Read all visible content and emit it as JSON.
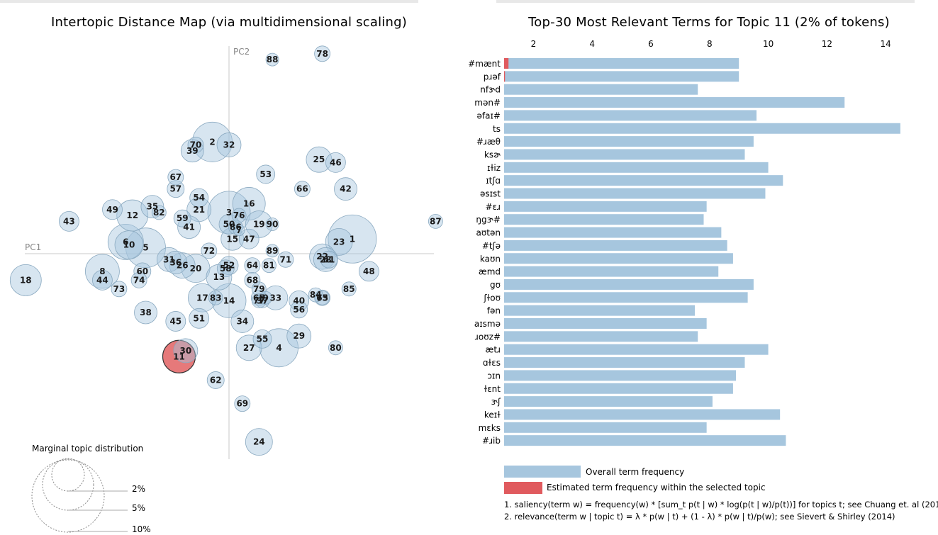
{
  "map": {
    "title": "Intertopic Distance Map (via multidimensional scaling)",
    "pc1_label": "PC1",
    "pc2_label": "PC2",
    "marginal_title": "Marginal topic distribution",
    "marginal_levels": [
      "2%",
      "5%",
      "10%"
    ],
    "selected_topic": "11",
    "colors": {
      "bubble": "#a6c6de",
      "bubble_stroke": "#8aa9c0",
      "selected": "#d62728",
      "axis": "#c8c8c8"
    }
  },
  "bars": {
    "title": "Top-30 Most Relevant Terms for Topic 11 (2% of tokens)",
    "legend_overall": "Overall term frequency",
    "legend_selected": "Estimated term frequency within the selected topic",
    "footnote1": "1. saliency(term w) = frequency(w) * [sum_t p(t | w) * log(p(t | w)/p(t))] for topics t; see Chuang et. al (2012)",
    "footnote2": "2. relevance(term w | topic t) = λ * p(w | t) + (1 - λ) * p(w | t)/p(w); see Sievert & Shirley (2014)",
    "colors": {
      "overall": "#a6c6de",
      "topic": "#e05a5e"
    }
  },
  "chart_data": [
    {
      "type": "scatter",
      "title": "Intertopic Distance Map (via multidimensional scaling)",
      "xlabel": "PC1",
      "ylabel": "PC2",
      "note": "bubble positions approximate PC1/PC2 coordinates; size = marginal topic distribution",
      "points": [
        {
          "topic": "1",
          "x": 0.37,
          "y": 0.05,
          "r": 34
        },
        {
          "topic": "2",
          "x": -0.05,
          "y": 0.38,
          "r": 28
        },
        {
          "topic": "3",
          "x": 0.0,
          "y": 0.14,
          "r": 30
        },
        {
          "topic": "4",
          "x": 0.15,
          "y": -0.32,
          "r": 27
        },
        {
          "topic": "5",
          "x": -0.25,
          "y": 0.02,
          "r": 28
        },
        {
          "topic": "6",
          "x": -0.31,
          "y": 0.04,
          "r": 25
        },
        {
          "topic": "7",
          "x": 0.03,
          "y": 0.08,
          "r": 8
        },
        {
          "topic": "8",
          "x": -0.38,
          "y": -0.06,
          "r": 24
        },
        {
          "topic": "9",
          "x": 0.11,
          "y": -0.15,
          "r": 9
        },
        {
          "topic": "10",
          "x": -0.3,
          "y": 0.03,
          "r": 20
        },
        {
          "topic": "11",
          "x": -0.15,
          "y": -0.35,
          "r": 23
        },
        {
          "topic": "12",
          "x": -0.29,
          "y": 0.13,
          "r": 22
        },
        {
          "topic": "13",
          "x": -0.03,
          "y": -0.08,
          "r": 18
        },
        {
          "topic": "14",
          "x": 0.0,
          "y": -0.16,
          "r": 24
        },
        {
          "topic": "15",
          "x": 0.01,
          "y": 0.05,
          "r": 16
        },
        {
          "topic": "16",
          "x": 0.06,
          "y": 0.17,
          "r": 23
        },
        {
          "topic": "17",
          "x": -0.08,
          "y": -0.15,
          "r": 20
        },
        {
          "topic": "18",
          "x": -0.61,
          "y": -0.09,
          "r": 22
        },
        {
          "topic": "19",
          "x": 0.09,
          "y": 0.1,
          "r": 19
        },
        {
          "topic": "20",
          "x": -0.1,
          "y": -0.05,
          "r": 20
        },
        {
          "topic": "21",
          "x": -0.09,
          "y": 0.15,
          "r": 17
        },
        {
          "topic": "22",
          "x": 0.28,
          "y": -0.01,
          "r": 18
        },
        {
          "topic": "23",
          "x": 0.33,
          "y": 0.04,
          "r": 19
        },
        {
          "topic": "24",
          "x": 0.09,
          "y": -0.64,
          "r": 19
        },
        {
          "topic": "25",
          "x": 0.27,
          "y": 0.32,
          "r": 18
        },
        {
          "topic": "26",
          "x": -0.14,
          "y": -0.04,
          "r": 18
        },
        {
          "topic": "27",
          "x": 0.06,
          "y": -0.32,
          "r": 18
        },
        {
          "topic": "28",
          "x": 0.29,
          "y": -0.02,
          "r": 17
        },
        {
          "topic": "29",
          "x": 0.21,
          "y": -0.28,
          "r": 17
        },
        {
          "topic": "30",
          "x": -0.13,
          "y": -0.33,
          "r": 17
        },
        {
          "topic": "31",
          "x": -0.18,
          "y": -0.02,
          "r": 17
        },
        {
          "topic": "32",
          "x": 0.0,
          "y": 0.37,
          "r": 17
        },
        {
          "topic": "33",
          "x": 0.14,
          "y": -0.15,
          "r": 17
        },
        {
          "topic": "34",
          "x": 0.04,
          "y": -0.23,
          "r": 16
        },
        {
          "topic": "35",
          "x": -0.23,
          "y": 0.16,
          "r": 16
        },
        {
          "topic": "36",
          "x": -0.16,
          "y": -0.03,
          "r": 16
        },
        {
          "topic": "37",
          "x": 0.1,
          "y": -0.16,
          "r": 10
        },
        {
          "topic": "38",
          "x": -0.25,
          "y": -0.2,
          "r": 16
        },
        {
          "topic": "39",
          "x": -0.11,
          "y": 0.35,
          "r": 16
        },
        {
          "topic": "40",
          "x": 0.21,
          "y": -0.16,
          "r": 14
        },
        {
          "topic": "41",
          "x": -0.12,
          "y": 0.09,
          "r": 16
        },
        {
          "topic": "42",
          "x": 0.35,
          "y": 0.22,
          "r": 16
        },
        {
          "topic": "43",
          "x": -0.48,
          "y": 0.11,
          "r": 14
        },
        {
          "topic": "44",
          "x": -0.38,
          "y": -0.09,
          "r": 14
        },
        {
          "topic": "45",
          "x": -0.16,
          "y": -0.23,
          "r": 14
        },
        {
          "topic": "46",
          "x": 0.32,
          "y": 0.31,
          "r": 14
        },
        {
          "topic": "47",
          "x": 0.06,
          "y": 0.05,
          "r": 14
        },
        {
          "topic": "48",
          "x": 0.42,
          "y": -0.06,
          "r": 14
        },
        {
          "topic": "49",
          "x": -0.35,
          "y": 0.15,
          "r": 14
        },
        {
          "topic": "50",
          "x": 0.0,
          "y": 0.1,
          "r": 14
        },
        {
          "topic": "51",
          "x": -0.09,
          "y": -0.22,
          "r": 14
        },
        {
          "topic": "52",
          "x": 0.0,
          "y": -0.04,
          "r": 13
        },
        {
          "topic": "53",
          "x": 0.11,
          "y": 0.27,
          "r": 13
        },
        {
          "topic": "54",
          "x": -0.09,
          "y": 0.19,
          "r": 13
        },
        {
          "topic": "55",
          "x": 0.1,
          "y": -0.29,
          "r": 13
        },
        {
          "topic": "56",
          "x": 0.21,
          "y": -0.19,
          "r": 12
        },
        {
          "topic": "57",
          "x": -0.16,
          "y": 0.22,
          "r": 12
        },
        {
          "topic": "58",
          "x": -0.01,
          "y": -0.05,
          "r": 12
        },
        {
          "topic": "59",
          "x": -0.14,
          "y": 0.12,
          "r": 12
        },
        {
          "topic": "60",
          "x": -0.26,
          "y": -0.06,
          "r": 12
        },
        {
          "topic": "61",
          "x": 0.3,
          "y": -0.02,
          "r": 12
        },
        {
          "topic": "62",
          "x": -0.04,
          "y": -0.43,
          "r": 12
        },
        {
          "topic": "63",
          "x": 0.28,
          "y": -0.15,
          "r": 11
        },
        {
          "topic": "64",
          "x": 0.07,
          "y": -0.04,
          "r": 11
        },
        {
          "topic": "65",
          "x": 0.09,
          "y": -0.15,
          "r": 11
        },
        {
          "topic": "66",
          "x": 0.22,
          "y": 0.22,
          "r": 11
        },
        {
          "topic": "67",
          "x": -0.16,
          "y": 0.26,
          "r": 11
        },
        {
          "topic": "68",
          "x": 0.07,
          "y": -0.09,
          "r": 11
        },
        {
          "topic": "69",
          "x": 0.04,
          "y": -0.51,
          "r": 11
        },
        {
          "topic": "70",
          "x": -0.1,
          "y": 0.37,
          "r": 11
        },
        {
          "topic": "71",
          "x": 0.17,
          "y": -0.02,
          "r": 11
        },
        {
          "topic": "72",
          "x": -0.06,
          "y": 0.01,
          "r": 11
        },
        {
          "topic": "73",
          "x": -0.33,
          "y": -0.12,
          "r": 11
        },
        {
          "topic": "74",
          "x": -0.27,
          "y": -0.09,
          "r": 11
        },
        {
          "topic": "75",
          "x": 0.28,
          "y": -0.15,
          "r": 10
        },
        {
          "topic": "76",
          "x": 0.03,
          "y": 0.13,
          "r": 10
        },
        {
          "topic": "77",
          "x": 0.09,
          "y": -0.16,
          "r": 10
        },
        {
          "topic": "78",
          "x": 0.28,
          "y": 0.68,
          "r": 11
        },
        {
          "topic": "79",
          "x": 0.09,
          "y": -0.12,
          "r": 10
        },
        {
          "topic": "80",
          "x": 0.32,
          "y": -0.32,
          "r": 10
        },
        {
          "topic": "81",
          "x": 0.12,
          "y": -0.04,
          "r": 10
        },
        {
          "topic": "82",
          "x": -0.21,
          "y": 0.14,
          "r": 10
        },
        {
          "topic": "83",
          "x": -0.04,
          "y": -0.15,
          "r": 10
        },
        {
          "topic": "84",
          "x": 0.26,
          "y": -0.14,
          "r": 10
        },
        {
          "topic": "85",
          "x": 0.36,
          "y": -0.12,
          "r": 10
        },
        {
          "topic": "86",
          "x": 0.02,
          "y": 0.09,
          "r": 10
        },
        {
          "topic": "87",
          "x": 0.62,
          "y": 0.11,
          "r": 10
        },
        {
          "topic": "88",
          "x": 0.13,
          "y": 0.66,
          "r": 9
        },
        {
          "topic": "89",
          "x": 0.13,
          "y": 0.01,
          "r": 9
        },
        {
          "topic": "90",
          "x": 0.13,
          "y": 0.1,
          "r": 9
        }
      ]
    },
    {
      "type": "bar",
      "orientation": "horizontal",
      "title": "Top-30 Most Relevant Terms for Topic 11 (2% of tokens)",
      "xlim": [
        1,
        14.5
      ],
      "xticks": [
        2,
        4,
        6,
        8,
        10,
        12,
        14
      ],
      "categories": [
        "#mænt",
        "pɹəf",
        "nfɝd",
        "mən#",
        "əfaɪ#",
        "ts",
        "#ɹæθ",
        "ksɚ",
        "ɪɫiz",
        "ɪtʃɑ",
        "əsɪst",
        "#ɛɹ",
        "ŋgɝ#",
        "aʊtən",
        "#tʃə",
        "kaʊn",
        "æmd",
        "gʊ",
        "ʃɫoʊ",
        "fən",
        "aɪsmə",
        "ɹoʊz#",
        "ætɹ",
        "ɑɫɛs",
        "ɔɪn",
        "ɫɛnt",
        "ɝʃ",
        "keɪɫ",
        "mɛks",
        "#ɹib"
      ],
      "series": [
        {
          "name": "Overall term frequency",
          "values": [
            9.0,
            9.0,
            7.6,
            12.6,
            9.6,
            14.5,
            9.5,
            9.2,
            10.0,
            10.5,
            9.9,
            7.9,
            7.8,
            8.4,
            8.6,
            8.8,
            8.3,
            9.5,
            9.3,
            7.5,
            7.9,
            7.6,
            10.0,
            9.2,
            8.9,
            8.8,
            8.1,
            10.4,
            7.9,
            10.6
          ]
        },
        {
          "name": "Estimated term frequency within the selected topic",
          "values": [
            1.15,
            1.03,
            1,
            1,
            1,
            1,
            1,
            1,
            1,
            1,
            1,
            1,
            1,
            1,
            1,
            1,
            1,
            1,
            1,
            1,
            1,
            1,
            1,
            1,
            1,
            1,
            1,
            1,
            1,
            1
          ]
        }
      ]
    }
  ]
}
